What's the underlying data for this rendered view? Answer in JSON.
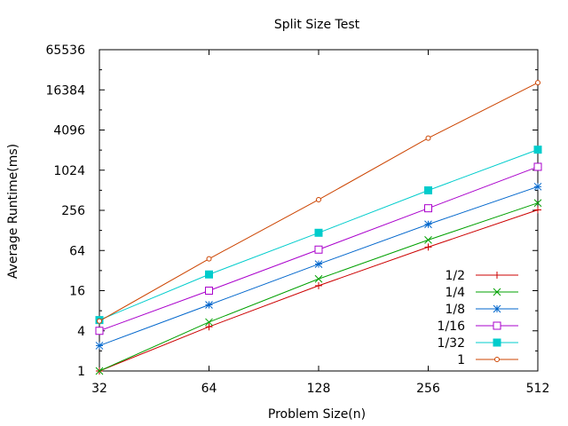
{
  "chart_data": {
    "type": "line",
    "title": "Split Size Test",
    "xlabel": "Problem Size(n)",
    "ylabel": "Average Runtime(ms)",
    "x_scale": "log2",
    "y_scale": "log2",
    "xlim": [
      32,
      512
    ],
    "ylim": [
      1,
      65536
    ],
    "x_ticks": [
      "32",
      "64",
      "128",
      "256",
      "512"
    ],
    "y_ticks": [
      "1",
      "4",
      "16",
      "64",
      "256",
      "1024",
      "4096",
      "16384",
      "65536"
    ],
    "x": [
      32,
      64,
      128,
      256,
      512
    ],
    "grid": false,
    "legend_position": "bottom-right",
    "series": [
      {
        "name": "1/2",
        "color": "#cc0000",
        "marker": "plus",
        "values": [
          1,
          4.6,
          19,
          72,
          260
        ]
      },
      {
        "name": "1/4",
        "color": "#00a000",
        "marker": "cross",
        "values": [
          1,
          5.4,
          24,
          92,
          330
        ]
      },
      {
        "name": "1/8",
        "color": "#0066cc",
        "marker": "star",
        "values": [
          2.4,
          9.8,
          40,
          158,
          580
        ]
      },
      {
        "name": "1/16",
        "color": "#aa00cc",
        "marker": "square-open",
        "values": [
          4.0,
          16,
          66,
          275,
          1150
        ]
      },
      {
        "name": "1/32",
        "color": "#00cccc",
        "marker": "square-filled",
        "values": [
          5.8,
          28,
          118,
          510,
          2080
        ]
      },
      {
        "name": "1",
        "color": "#cc4400",
        "marker": "circle-open",
        "values": [
          5.6,
          48,
          370,
          3100,
          21000
        ]
      }
    ]
  }
}
